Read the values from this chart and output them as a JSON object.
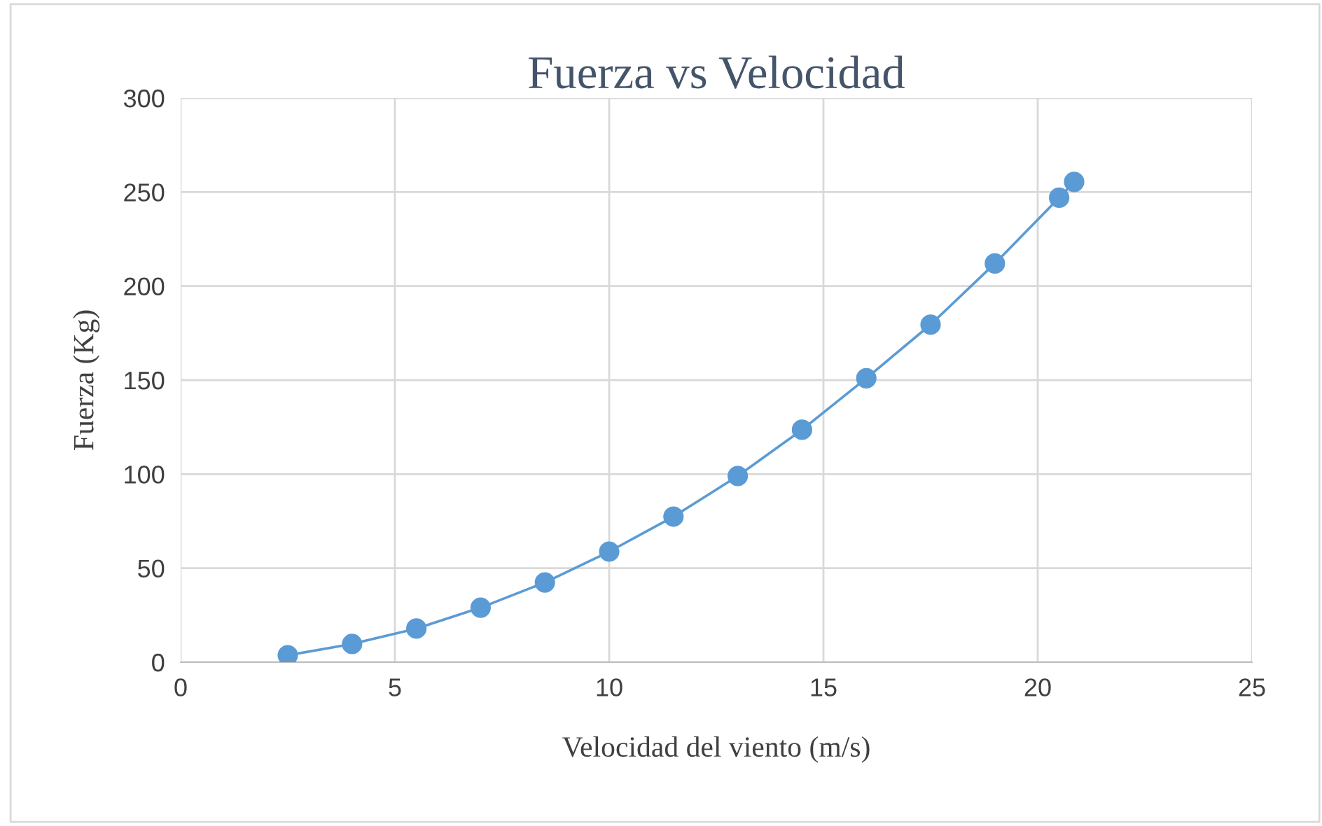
{
  "chart_data": {
    "type": "line",
    "title": "Fuerza vs Velocidad",
    "xlabel": "Velocidad del viento (m/s)",
    "ylabel": "Fuerza (Kg)",
    "series": [
      {
        "color": "#5b9bd5",
        "x": [
          2.5,
          4,
          5.5,
          7,
          8.5,
          10,
          11.5,
          13,
          14.5,
          16,
          17.5,
          19,
          20.5,
          20.85
        ],
        "values": [
          3.7,
          9.7,
          17.9,
          29,
          42.4,
          58.8,
          77.4,
          99,
          123.6,
          151,
          179.5,
          212,
          247,
          255.4
        ]
      }
    ],
    "line_style": "solid",
    "marker": "circle",
    "xlim": [
      0,
      25
    ],
    "ylim": [
      0,
      300
    ],
    "xticks": [
      0,
      5,
      10,
      15,
      20,
      25
    ],
    "yticks": [
      0,
      50,
      100,
      150,
      200,
      250,
      300
    ],
    "grid": true,
    "legend": false
  }
}
